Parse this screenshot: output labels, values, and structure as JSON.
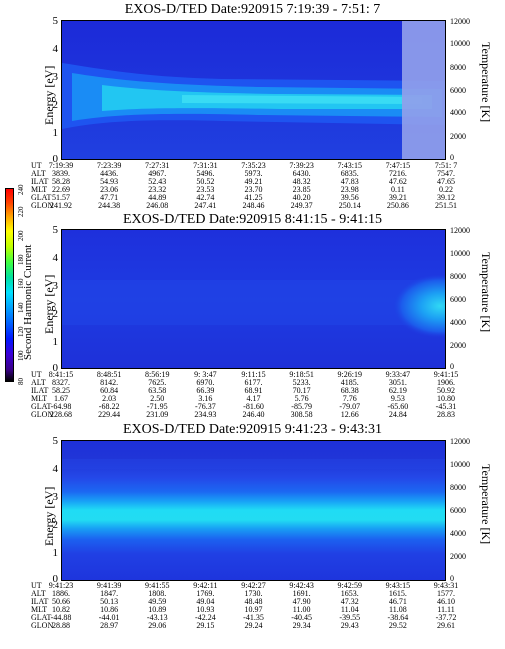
{
  "panels": [
    {
      "title": "EXOS-D/TED   Date:920915  7:19:39 - 7:51: 7",
      "ylabel": "Energy [eV]",
      "rlabel": "Temperature [K]",
      "energy_ticks": [
        "5",
        "4",
        "3",
        "2",
        "1",
        "0"
      ],
      "temp_ticks": [
        "12000",
        "10000",
        "8000",
        "6000",
        "4000",
        "2000",
        "0"
      ],
      "rows": [
        {
          "label": "UT",
          "values": [
            "7:19:39",
            "7:23:39",
            "7:27:31",
            "7:31:31",
            "7:35:23",
            "7:39:23",
            "7:43:15",
            "7:47:15",
            "7:51: 7"
          ]
        },
        {
          "label": "ALT",
          "values": [
            "3839.",
            "4436.",
            "4967.",
            "5496.",
            "5973.",
            "6430.",
            "6835.",
            "7216.",
            "7547."
          ]
        },
        {
          "label": "ILAT",
          "values": [
            "58.28",
            "54.93",
            "52.43",
            "50.52",
            "49.21",
            "48.32",
            "47.83",
            "47.62",
            "47.65"
          ]
        },
        {
          "label": "MLT",
          "values": [
            "22.69",
            "23.06",
            "23.32",
            "23.53",
            "23.70",
            "23.85",
            "23.98",
            "0.11",
            "0.22"
          ]
        },
        {
          "label": "GLAT",
          "values": [
            "51.57",
            "47.71",
            "44.89",
            "42.74",
            "41.25",
            "40.20",
            "39.56",
            "39.21",
            "39.12"
          ]
        },
        {
          "label": "GLON",
          "values": [
            "241.92",
            "244.38",
            "246.08",
            "247.41",
            "248.46",
            "249.37",
            "250.14",
            "250.86",
            "251.51"
          ]
        }
      ]
    },
    {
      "title": "EXOS-D/TED   Date:920915  8:41:15 - 9:41:15",
      "ylabel": "Energy [eV]",
      "rlabel": "Temperature [K]",
      "energy_ticks": [
        "5",
        "4",
        "3",
        "2",
        "1",
        "0"
      ],
      "temp_ticks": [
        "12000",
        "10000",
        "8000",
        "6000",
        "4000",
        "2000",
        "0"
      ],
      "rows": [
        {
          "label": "UT",
          "values": [
            "8:41:15",
            "8:48:51",
            "8:56:19",
            "9: 3:47",
            "9:11:15",
            "9:18:51",
            "9:26:19",
            "9:33:47",
            "9:41:15"
          ]
        },
        {
          "label": "ALT",
          "values": [
            "8327.",
            "8142.",
            "7625.",
            "6970.",
            "6177.",
            "5233.",
            "4185.",
            "3051.",
            "1906."
          ]
        },
        {
          "label": "ILAT",
          "values": [
            "58.25",
            "60.84",
            "63.58",
            "66.39",
            "68.91",
            "70.17",
            "68.38",
            "62.19",
            "50.92"
          ]
        },
        {
          "label": "MLT",
          "values": [
            "1.67",
            "2.03",
            "2.50",
            "3.16",
            "4.17",
            "5.76",
            "7.76",
            "9.53",
            "10.80"
          ]
        },
        {
          "label": "GLAT",
          "values": [
            "-64.98",
            "-68.22",
            "-71.95",
            "-76.37",
            "-81.60",
            "-85.79",
            "-79.07",
            "-65.60",
            "-45.31"
          ]
        },
        {
          "label": "GLON",
          "values": [
            "228.68",
            "229.44",
            "231.09",
            "234.93",
            "246.40",
            "308.58",
            "12.66",
            "24.84",
            "28.83"
          ]
        }
      ]
    },
    {
      "title": "EXOS-D/TED   Date:920915  9:41:23 - 9:43:31",
      "ylabel": "Energy [eV]",
      "rlabel": "Temperature [K]",
      "energy_ticks": [
        "5",
        "4",
        "3",
        "2",
        "1",
        "0"
      ],
      "temp_ticks": [
        "12000",
        "10000",
        "8000",
        "6000",
        "4000",
        "2000",
        "0"
      ],
      "rows": [
        {
          "label": "UT",
          "values": [
            "9:41:23",
            "9:41:39",
            "9:41:55",
            "9:42:11",
            "9:42:27",
            "9:42:43",
            "9:42:59",
            "9:43:15",
            "9:43:31"
          ]
        },
        {
          "label": "ALT",
          "values": [
            "1886.",
            "1847.",
            "1808.",
            "1769.",
            "1730.",
            "1691.",
            "1653.",
            "1615.",
            "1577."
          ]
        },
        {
          "label": "ILAT",
          "values": [
            "50.66",
            "50.13",
            "49.59",
            "49.04",
            "48.48",
            "47.90",
            "47.32",
            "46.71",
            "46.10"
          ]
        },
        {
          "label": "MLT",
          "values": [
            "10.82",
            "10.86",
            "10.89",
            "10.93",
            "10.97",
            "11.00",
            "11.04",
            "11.08",
            "11.11"
          ]
        },
        {
          "label": "GLAT",
          "values": [
            "-44.88",
            "-44.01",
            "-43.13",
            "-42.24",
            "-41.35",
            "-40.45",
            "-39.55",
            "-38.64",
            "-37.72"
          ]
        },
        {
          "label": "GLON",
          "values": [
            "28.88",
            "28.97",
            "29.06",
            "29.15",
            "29.24",
            "29.34",
            "29.43",
            "29.52",
            "29.61"
          ]
        }
      ]
    }
  ],
  "colorbar": {
    "label": "Second Harmonic Current",
    "ticks": [
      "80",
      "100",
      "120",
      "140",
      "160",
      "180",
      "200",
      "220",
      "240"
    ]
  },
  "chart_data": [
    {
      "type": "heatmap",
      "title": "EXOS-D/TED   Date:920915  7:19:39 - 7:51: 7",
      "ylabel": "Energy [eV]",
      "y2label": "Temperature [K]",
      "ylim": [
        0,
        5
      ],
      "y2lim": [
        0,
        12000
      ],
      "band_center_ev": [
        2.5,
        2.45,
        2.4,
        2.35,
        2.3,
        2.25,
        2.2,
        2.15,
        2.1
      ],
      "band_halfwidth_ev": [
        0.7,
        0.6,
        0.5,
        0.5,
        0.45,
        0.45,
        0.45,
        0.45,
        0.45
      ]
    },
    {
      "type": "heatmap",
      "title": "EXOS-D/TED   Date:920915  8:41:15 - 9:41:15",
      "ylabel": "Energy [eV]",
      "y2label": "Temperature [K]",
      "ylim": [
        0,
        5
      ],
      "y2lim": [
        0,
        12000
      ],
      "enhancement_region_ev": [
        1.5,
        3.0
      ]
    },
    {
      "type": "heatmap",
      "title": "EXOS-D/TED   Date:920915  9:41:23 - 9:43:31",
      "ylabel": "Energy [eV]",
      "y2label": "Temperature [K]",
      "ylim": [
        0,
        5
      ],
      "y2lim": [
        0,
        12000
      ],
      "band_center_ev": [
        2.2,
        2.2,
        2.2,
        2.2,
        2.2,
        2.2,
        2.2,
        2.2,
        2.2
      ],
      "band_halfwidth_ev": [
        0.35,
        0.35,
        0.35,
        0.35,
        0.35,
        0.35,
        0.35,
        0.35,
        0.35
      ]
    }
  ]
}
